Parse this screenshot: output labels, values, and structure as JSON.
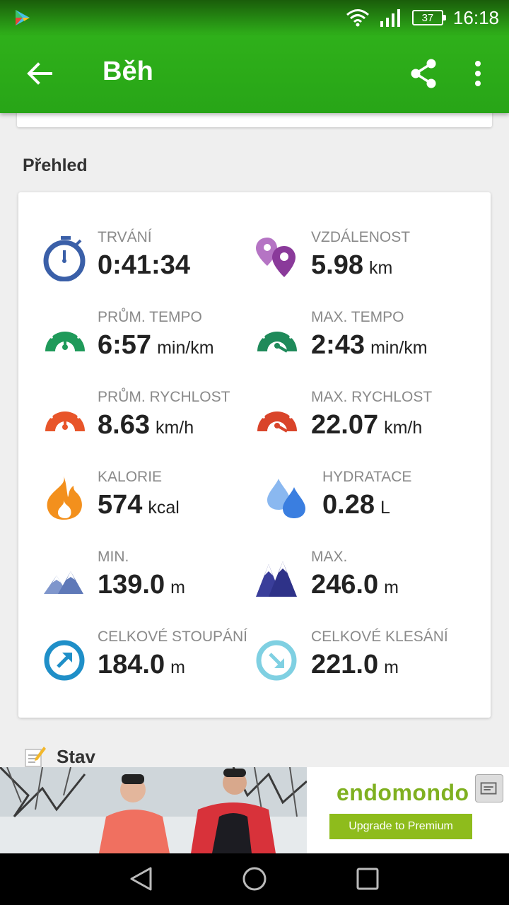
{
  "status_bar": {
    "time": "16:18",
    "battery": "37"
  },
  "app_bar": {
    "title": "Běh"
  },
  "section_title": "Přehled",
  "stats": [
    {
      "label": "TRVÁNÍ",
      "value": "0:41:34",
      "unit": "",
      "icon": "stopwatch-icon",
      "color": "#3a5fa8"
    },
    {
      "label": "VZDÁLENOST",
      "value": "5.98",
      "unit": "km",
      "icon": "location-pins-icon",
      "color": "#8a3a9a"
    },
    {
      "label": "PRŮM. TEMPO",
      "value": "6:57",
      "unit": "min/km",
      "icon": "avg-pace-gauge-icon",
      "color": "#1f9a5a"
    },
    {
      "label": "MAX. TEMPO",
      "value": "2:43",
      "unit": "min/km",
      "icon": "max-pace-gauge-icon",
      "color": "#1f8a5a"
    },
    {
      "label": "PRŮM. RYCHLOST",
      "value": "8.63",
      "unit": "km/h",
      "icon": "avg-speed-gauge-icon",
      "color": "#e8552a"
    },
    {
      "label": "MAX. RYCHLOST",
      "value": "22.07",
      "unit": "km/h",
      "icon": "max-speed-gauge-icon",
      "color": "#d9442a"
    },
    {
      "label": "KALORIE",
      "value": "574",
      "unit": "kcal",
      "icon": "flame-icon",
      "color": "#f3901d"
    },
    {
      "label": "HYDRATACE",
      "value": "0.28",
      "unit": "L",
      "icon": "water-drops-icon",
      "color": "#4a8fe8"
    },
    {
      "label": "MIN.",
      "value": "139.0",
      "unit": "m",
      "icon": "mountains-low-icon",
      "color": "#5f79b8"
    },
    {
      "label": "MAX.",
      "value": "246.0",
      "unit": "m",
      "icon": "mountains-high-icon",
      "color": "#3a3e9a"
    },
    {
      "label": "CELKOVÉ STOUPÁNÍ",
      "value": "184.0",
      "unit": "m",
      "icon": "ascent-arrow-icon",
      "color": "#1f8fc8"
    },
    {
      "label": "CELKOVÉ KLESÁNÍ",
      "value": "221.0",
      "unit": "m",
      "icon": "descent-arrow-icon",
      "color": "#7fd0e2"
    }
  ],
  "stav": {
    "title": "Stav"
  },
  "ad": {
    "brand": "endomondo",
    "button_label": "Upgrade to Premium"
  }
}
